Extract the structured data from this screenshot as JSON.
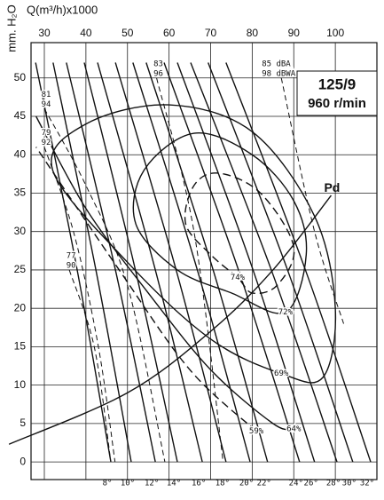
{
  "chart_data": {
    "type": "line",
    "title": "125/9",
    "subtitle": "960 r/min",
    "x_label": "Q(m³/h)x1000",
    "y_label": "mm. H₂O",
    "xlim": [
      26.8,
      110
    ],
    "ylim": [
      -2.3,
      54.6
    ],
    "xticks": [
      30,
      40,
      50,
      60,
      70,
      80,
      90,
      100
    ],
    "yticks": [
      0,
      5,
      10,
      15,
      20,
      25,
      30,
      35,
      40,
      45,
      50
    ],
    "grid": true,
    "series": [
      {
        "name": "8°",
        "x": [
          27.9,
          37.9,
          46.0
        ],
        "values": [
          52,
          25,
          0
        ]
      },
      {
        "name": "10°",
        "x": [
          32.1,
          42.4,
          50.9
        ],
        "values": [
          52,
          25,
          0
        ]
      },
      {
        "name": "12°",
        "x": [
          35.3,
          47.1,
          56.7
        ],
        "values": [
          52,
          25,
          0
        ]
      },
      {
        "name": "14°",
        "x": [
          39.6,
          51.9,
          62.0
        ],
        "values": [
          52,
          25,
          0
        ]
      },
      {
        "name": "16°",
        "x": [
          42.8,
          56.7,
          68.0
        ],
        "values": [
          52,
          25,
          0
        ]
      },
      {
        "name": "18°",
        "x": [
          47.1,
          61.7,
          73.7
        ],
        "values": [
          52,
          25,
          0
        ]
      },
      {
        "name": "20°",
        "x": [
          51.3,
          66.8,
          79.5
        ],
        "values": [
          52,
          25,
          0
        ]
      },
      {
        "name": "22°",
        "x": [
          54.5,
          70.6,
          83.7
        ],
        "values": [
          52,
          25,
          0
        ]
      },
      {
        "name": "24°",
        "x": [
          58.8,
          76.7,
          91.4
        ],
        "values": [
          52,
          25,
          0
        ]
      },
      {
        "name": "26°",
        "x": [
          62.0,
          80.2,
          95.0
        ],
        "values": [
          52,
          25,
          0
        ]
      },
      {
        "name": "28°",
        "x": [
          65.2,
          84.6,
          100.4
        ],
        "values": [
          52,
          25,
          0
        ]
      },
      {
        "name": "30°",
        "x": [
          69.4,
          88.5,
          104.2
        ],
        "values": [
          52,
          25,
          0
        ]
      },
      {
        "name": "32°",
        "x": [
          73.7,
          92.8,
          108.5
        ],
        "values": [
          52,
          25,
          0
        ]
      }
    ],
    "efficiency_contours": [
      {
        "name": "74%",
        "closed": true,
        "dashed": true,
        "x": [
          76.5,
          70,
          64,
          66,
          72,
          82,
          90,
          86,
          80
        ],
        "values": [
          24,
          27,
          31,
          36,
          37.6,
          35,
          28,
          23,
          22
        ]
      },
      {
        "name": "72%",
        "closed": true,
        "dashed": false,
        "x": [
          88,
          75,
          62,
          52,
          54,
          66,
          80,
          90,
          93
        ],
        "values": [
          19.5,
          22,
          25,
          31,
          38,
          42.8,
          40,
          34,
          27
        ]
      },
      {
        "name": "69%",
        "closed": true,
        "dashed": false,
        "x": [
          87,
          70,
          50,
          32,
          40,
          60,
          80,
          95,
          100,
          97
        ],
        "values": [
          11.5,
          16,
          26,
          38,
          44,
          46.5,
          43,
          32,
          20,
          11
        ]
      },
      {
        "name": "64%",
        "closed": false,
        "dashed": false,
        "x": [
          90,
          85,
          70,
          55,
          40,
          28
        ],
        "values": [
          4.3,
          5,
          12,
          22,
          33,
          45
        ]
      },
      {
        "name": "59%",
        "closed": false,
        "dashed": true,
        "x": [
          81,
          65,
          48,
          28
        ],
        "values": [
          4,
          12,
          25,
          41
        ]
      }
    ],
    "noise_lines": [
      {
        "labels": [
          "83",
          "96"
        ],
        "x": [
          57,
          66,
          73
        ],
        "values": [
          50,
          30,
          0
        ]
      },
      {
        "labels": [
          "85 dBA",
          "98 dBWA"
        ],
        "x": [
          87,
          95,
          102
        ],
        "values": [
          50,
          30,
          18
        ]
      },
      {
        "labels": [
          "81",
          "94"
        ],
        "x": [
          30,
          40,
          50,
          59
        ],
        "values": [
          46,
          36,
          23,
          0
        ]
      },
      {
        "labels": [
          "79",
          "92"
        ],
        "x": [
          30,
          37,
          43,
          47
        ],
        "values": [
          41,
          30,
          15,
          0
        ]
      },
      {
        "labels": [
          "77",
          "90"
        ],
        "x": [
          36,
          42,
          46
        ],
        "values": [
          25,
          15,
          0
        ]
      }
    ],
    "pd_line": {
      "name": "Pd",
      "x": [
        21.5,
        50,
        70,
        85,
        99
      ],
      "values": [
        2.3,
        9,
        17,
        25,
        34.7
      ]
    }
  }
}
